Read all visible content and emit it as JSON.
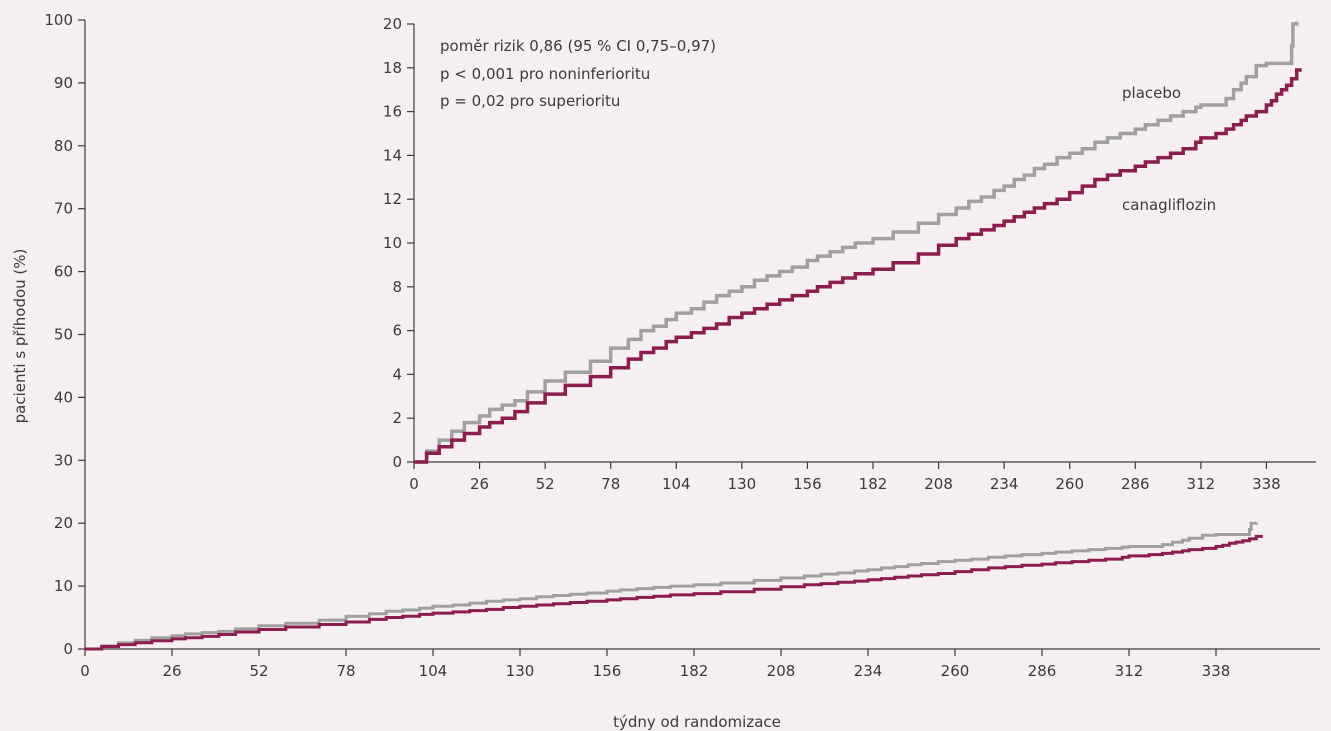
{
  "chart_data": [
    {
      "type": "line",
      "role": "main",
      "xlabel": "týdny od randomizace",
      "ylabel": "pacienti s příhodou (%)",
      "xlim": [
        0,
        364
      ],
      "ylim": [
        0,
        100
      ],
      "x_ticks": [
        0,
        26,
        52,
        78,
        104,
        130,
        156,
        182,
        208,
        234,
        260,
        286,
        312,
        338
      ],
      "y_ticks": [
        0,
        10,
        20,
        30,
        40,
        50,
        60,
        70,
        80,
        90,
        100
      ],
      "grid": false,
      "series": [
        {
          "name": "placebo",
          "color": "#a0a0a0",
          "x": [
            0,
            5,
            10,
            15,
            20,
            26,
            30,
            35,
            40,
            45,
            52,
            60,
            70,
            78,
            85,
            90,
            95,
            100,
            104,
            110,
            115,
            120,
            125,
            130,
            135,
            140,
            145,
            150,
            156,
            160,
            165,
            170,
            175,
            182,
            190,
            200,
            208,
            215,
            220,
            225,
            230,
            234,
            238,
            242,
            246,
            250,
            255,
            260,
            265,
            270,
            275,
            280,
            286,
            290,
            295,
            300,
            305,
            310,
            312,
            318,
            322,
            325,
            328,
            330,
            334,
            338,
            344,
            348,
            348.5,
            350
          ],
          "y": [
            0,
            0.5,
            1.0,
            1.4,
            1.8,
            2.1,
            2.4,
            2.6,
            2.8,
            3.2,
            3.7,
            4.1,
            4.6,
            5.2,
            5.6,
            6.0,
            6.2,
            6.5,
            6.8,
            7.0,
            7.3,
            7.6,
            7.8,
            8.0,
            8.3,
            8.5,
            8.7,
            8.9,
            9.2,
            9.4,
            9.6,
            9.8,
            10.0,
            10.2,
            10.5,
            10.9,
            11.3,
            11.6,
            11.9,
            12.1,
            12.4,
            12.6,
            12.9,
            13.1,
            13.4,
            13.6,
            13.9,
            14.1,
            14.3,
            14.6,
            14.8,
            15.0,
            15.2,
            15.4,
            15.6,
            15.8,
            16.0,
            16.2,
            16.3,
            16.3,
            16.6,
            17.0,
            17.3,
            17.6,
            18.1,
            18.2,
            18.2,
            19.0,
            20.0,
            20.1
          ]
        },
        {
          "name": "canagliflozin",
          "color": "#8b1e4f",
          "x": [
            0,
            5,
            10,
            15,
            20,
            26,
            30,
            35,
            40,
            45,
            52,
            60,
            70,
            78,
            85,
            90,
            95,
            100,
            104,
            110,
            115,
            120,
            125,
            130,
            135,
            140,
            145,
            150,
            156,
            160,
            165,
            170,
            175,
            182,
            190,
            200,
            208,
            215,
            220,
            225,
            230,
            234,
            238,
            242,
            246,
            250,
            255,
            260,
            265,
            270,
            275,
            280,
            286,
            290,
            295,
            300,
            305,
            310,
            312,
            318,
            322,
            325,
            328,
            330,
            334,
            338,
            340,
            342,
            344,
            346,
            348,
            350,
            352
          ],
          "y": [
            0,
            0.4,
            0.7,
            1.0,
            1.3,
            1.6,
            1.8,
            2.0,
            2.3,
            2.7,
            3.1,
            3.5,
            3.9,
            4.3,
            4.7,
            5.0,
            5.2,
            5.5,
            5.7,
            5.9,
            6.1,
            6.3,
            6.6,
            6.8,
            7.0,
            7.2,
            7.4,
            7.6,
            7.8,
            8.0,
            8.2,
            8.4,
            8.6,
            8.8,
            9.1,
            9.5,
            9.9,
            10.2,
            10.4,
            10.6,
            10.8,
            11.0,
            11.2,
            11.4,
            11.6,
            11.8,
            12.0,
            12.3,
            12.6,
            12.9,
            13.1,
            13.3,
            13.5,
            13.7,
            13.9,
            14.1,
            14.3,
            14.6,
            14.8,
            15.0,
            15.2,
            15.4,
            15.6,
            15.8,
            16.0,
            16.3,
            16.5,
            16.8,
            17.0,
            17.2,
            17.5,
            17.9,
            17.9
          ]
        }
      ]
    },
    {
      "type": "line",
      "role": "inset",
      "xlim": [
        0,
        364
      ],
      "ylim": [
        0,
        20
      ],
      "x_ticks": [
        0,
        26,
        52,
        78,
        104,
        130,
        156,
        182,
        208,
        234,
        260,
        286,
        312,
        338
      ],
      "y_ticks": [
        0,
        2,
        4,
        6,
        8,
        10,
        12,
        14,
        16,
        18,
        20
      ],
      "grid": false,
      "annotations": [
        "poměr rizik 0,86 (95 % CI 0,75–0,97)",
        "p < 0,001 pro noninferioritu",
        "p = 0,02 pro superioritu"
      ],
      "series_labels": [
        "placebo",
        "canagliflozin"
      ]
    }
  ]
}
